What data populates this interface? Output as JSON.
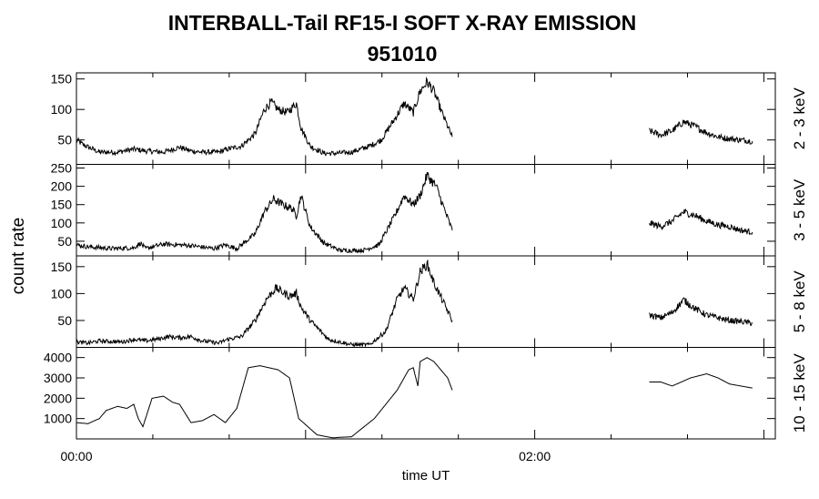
{
  "title": "INTERBALL-Tail RF15-I SOFT X-RAY EMISSION",
  "subtitle": "951010",
  "ylabel": "count rate",
  "xlabel": "time UT",
  "chart_data": {
    "type": "line",
    "title": "INTERBALL-Tail RF15-I SOFT X-RAY EMISSION",
    "subtitle": "951010",
    "xlabel": "time UT",
    "ylabel": "count rate",
    "x_units": "hours UT",
    "xlim": [
      0.0,
      3.05
    ],
    "xticks": [
      {
        "value": 0.0,
        "label": "00:00"
      },
      {
        "value": 2.0,
        "label": "02:00"
      }
    ],
    "panels": [
      {
        "name": "2 - 3 keV",
        "ylim": [
          10,
          160
        ],
        "yticks": [
          50,
          100,
          150
        ],
        "x": [
          0.0,
          0.03,
          0.1,
          0.18,
          0.25,
          0.3,
          0.38,
          0.45,
          0.5,
          0.55,
          0.62,
          0.66,
          0.72,
          0.78,
          0.82,
          0.85,
          0.88,
          0.92,
          0.96,
          0.98,
          1.02,
          1.08,
          1.13,
          1.2,
          1.28,
          1.33,
          1.39,
          1.43,
          1.47,
          1.5,
          1.53,
          1.56,
          1.6,
          1.64,
          null,
          2.5,
          2.55,
          2.6,
          2.65,
          2.7,
          2.75,
          2.8,
          2.85,
          2.9,
          2.95
        ],
        "values": [
          50,
          42,
          30,
          30,
          35,
          32,
          30,
          38,
          32,
          30,
          30,
          35,
          40,
          60,
          100,
          112,
          100,
          95,
          110,
          70,
          40,
          28,
          28,
          30,
          40,
          50,
          85,
          110,
          95,
          130,
          145,
          130,
          90,
          55,
          null,
          65,
          58,
          65,
          80,
          72,
          62,
          55,
          52,
          50,
          48
        ]
      },
      {
        "name": "3 - 5 keV",
        "ylim": [
          10,
          260
        ],
        "yticks": [
          50,
          100,
          150,
          200,
          250
        ],
        "x": [
          0.0,
          0.05,
          0.15,
          0.25,
          0.28,
          0.3,
          0.38,
          0.45,
          0.5,
          0.6,
          0.65,
          0.7,
          0.78,
          0.82,
          0.86,
          0.9,
          0.94,
          0.96,
          0.98,
          1.02,
          1.08,
          1.15,
          1.25,
          1.32,
          1.39,
          1.43,
          1.47,
          1.5,
          1.53,
          1.57,
          1.61,
          1.64,
          null,
          2.5,
          2.55,
          2.6,
          2.65,
          2.7,
          2.75,
          2.8,
          2.85,
          2.9,
          2.95
        ],
        "values": [
          40,
          35,
          30,
          32,
          45,
          30,
          42,
          40,
          38,
          30,
          40,
          30,
          70,
          130,
          165,
          150,
          140,
          120,
          175,
          90,
          45,
          25,
          25,
          40,
          120,
          175,
          150,
          175,
          230,
          200,
          130,
          80,
          null,
          100,
          90,
          105,
          130,
          120,
          105,
          95,
          90,
          80,
          75
        ]
      },
      {
        "name": "5 - 8 keV",
        "ylim": [
          0,
          170
        ],
        "yticks": [
          50,
          100,
          150
        ],
        "x": [
          0.0,
          0.05,
          0.1,
          0.2,
          0.25,
          0.3,
          0.35,
          0.4,
          0.45,
          0.5,
          0.55,
          0.62,
          0.66,
          0.72,
          0.78,
          0.83,
          0.87,
          0.93,
          0.96,
          0.98,
          1.02,
          1.1,
          1.2,
          1.28,
          1.35,
          1.4,
          1.43,
          1.47,
          1.5,
          1.53,
          1.56,
          1.6,
          1.64,
          null,
          2.5,
          2.55,
          2.6,
          2.65,
          2.7,
          2.75,
          2.8,
          2.85,
          2.9,
          2.95
        ],
        "values": [
          10,
          8,
          12,
          10,
          15,
          12,
          15,
          20,
          18,
          20,
          12,
          8,
          15,
          20,
          50,
          90,
          110,
          95,
          100,
          75,
          50,
          15,
          5,
          5,
          30,
          90,
          110,
          90,
          140,
          155,
          120,
          85,
          50,
          null,
          60,
          55,
          65,
          88,
          72,
          60,
          55,
          50,
          48,
          45
        ]
      },
      {
        "name": "10 - 15 keV",
        "ylim": [
          0,
          4500
        ],
        "yticks": [
          1000,
          2000,
          3000,
          4000
        ],
        "x": [
          0.0,
          0.05,
          0.1,
          0.13,
          0.18,
          0.22,
          0.25,
          0.27,
          0.29,
          0.33,
          0.38,
          0.42,
          0.45,
          0.5,
          0.55,
          0.6,
          0.65,
          0.7,
          0.75,
          0.8,
          0.88,
          0.93,
          0.97,
          1.05,
          1.12,
          1.15,
          1.2,
          1.3,
          1.4,
          1.45,
          1.47,
          1.49,
          1.5,
          1.53,
          1.56,
          1.62,
          1.64,
          null,
          2.5,
          2.55,
          2.6,
          2.68,
          2.75,
          2.8,
          2.85,
          2.9,
          2.95
        ],
        "values": [
          800,
          750,
          1000,
          1400,
          1600,
          1500,
          1700,
          1000,
          600,
          2000,
          2100,
          1800,
          1700,
          800,
          900,
          1200,
          800,
          1500,
          3500,
          3600,
          3400,
          3000,
          1000,
          200,
          50,
          80,
          100,
          1000,
          2400,
          3400,
          3500,
          2600,
          3800,
          4000,
          3800,
          3000,
          2400,
          null,
          2800,
          2800,
          2600,
          3000,
          3200,
          3000,
          2700,
          2600,
          2500
        ]
      }
    ]
  }
}
